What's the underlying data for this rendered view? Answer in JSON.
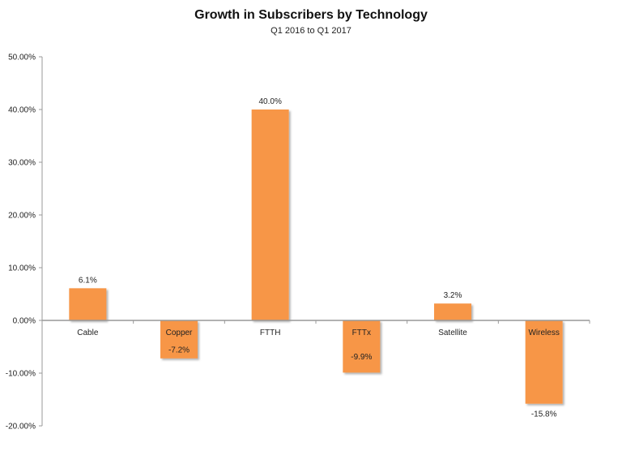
{
  "chart_data": {
    "type": "bar",
    "title": "Growth in Subscribers by Technology",
    "subtitle": "Q1 2016 to Q1 2017",
    "categories": [
      "Cable",
      "Copper",
      "FTTH",
      "FTTx",
      "Satellite",
      "Wireless"
    ],
    "values": [
      6.1,
      -7.2,
      40.0,
      -9.9,
      3.2,
      -15.8
    ],
    "data_labels": [
      "6.1%",
      "-7.2%",
      "40.0%",
      "-9.9%",
      "3.2%",
      "-15.8%"
    ],
    "ylim": [
      -20,
      50
    ],
    "yticks": [
      "-20.00%",
      "-10.00%",
      "0.00%",
      "10.00%",
      "20.00%",
      "30.00%",
      "40.00%",
      "50.00%"
    ],
    "ytick_values": [
      -20,
      -10,
      0,
      10,
      20,
      30,
      40,
      50
    ],
    "grid": false,
    "legend": "none",
    "bar_color": "#F79646"
  }
}
